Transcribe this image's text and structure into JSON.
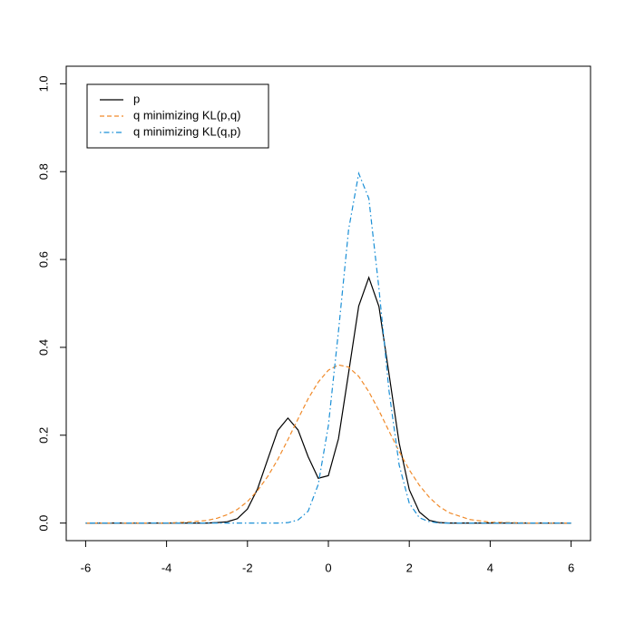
{
  "chart_data": {
    "type": "line",
    "x": [
      -6,
      -5,
      -4,
      -3.5,
      -3,
      -2.75,
      -2.5,
      -2.25,
      -2,
      -1.75,
      -1.5,
      -1.25,
      -1,
      -0.75,
      -0.5,
      -0.25,
      0,
      0.25,
      0.5,
      0.75,
      1,
      1.25,
      1.5,
      1.75,
      2,
      2.25,
      2.5,
      2.75,
      3,
      3.5,
      4,
      5,
      6
    ],
    "series": [
      {
        "name": "p",
        "color": "#000000",
        "dash": "solid",
        "values": [
          0,
          0,
          0,
          0,
          0,
          0.001,
          0.003,
          0.01,
          0.032,
          0.078,
          0.145,
          0.211,
          0.239,
          0.212,
          0.151,
          0.102,
          0.108,
          0.192,
          0.342,
          0.494,
          0.559,
          0.493,
          0.339,
          0.182,
          0.076,
          0.025,
          0.006,
          0.001,
          0,
          0,
          0,
          0,
          0
        ]
      },
      {
        "name": "q minimizing KL(p,q)",
        "color": "#f08a2a",
        "dash": "dashed",
        "values": [
          0,
          0,
          0,
          0.002,
          0.006,
          0.011,
          0.019,
          0.031,
          0.049,
          0.074,
          0.106,
          0.145,
          0.19,
          0.237,
          0.283,
          0.321,
          0.348,
          0.36,
          0.355,
          0.334,
          0.299,
          0.256,
          0.209,
          0.163,
          0.121,
          0.086,
          0.058,
          0.037,
          0.023,
          0.008,
          0.002,
          0,
          0
        ]
      },
      {
        "name": "q minimizing KL(q,p)",
        "color": "#1a8fd6",
        "dash": "dotdash",
        "values": [
          0,
          0,
          0,
          0,
          0,
          0,
          0,
          0,
          0,
          0,
          0,
          0,
          0.001,
          0.007,
          0.027,
          0.088,
          0.222,
          0.437,
          0.668,
          0.796,
          0.739,
          0.534,
          0.3,
          0.132,
          0.045,
          0.012,
          0.003,
          0,
          0,
          0,
          0,
          0,
          0
        ]
      }
    ],
    "xlim": [
      -6.48,
      6.48
    ],
    "xticks": [
      -6,
      -4,
      -2,
      0,
      2,
      4,
      6
    ],
    "ylim": [
      -0.04,
      1.04
    ],
    "yticks": [
      {
        "value": 0,
        "label": "0.0"
      },
      0.2,
      0.4,
      0.6,
      0.8,
      {
        "value": 1,
        "label": "1.0"
      }
    ],
    "legend": "top-left"
  }
}
